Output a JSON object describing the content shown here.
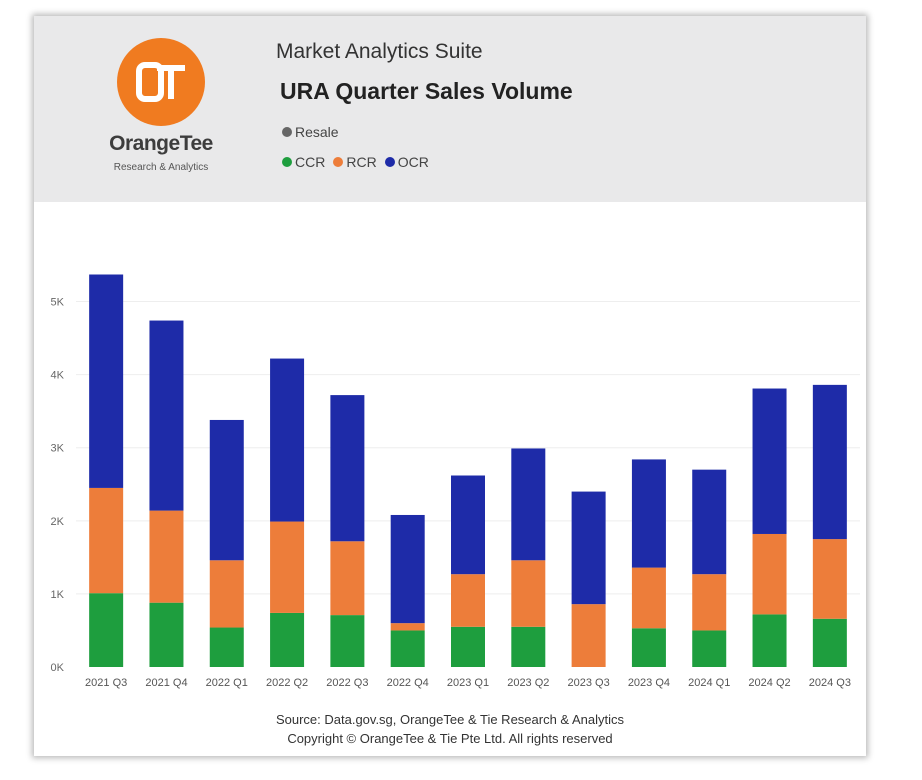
{
  "header": {
    "suite": "Market Analytics Suite",
    "brand": "OrangeTee",
    "brand_sub": "Research & Analytics",
    "logo_letters": "OT",
    "logo_color": "#F07B20"
  },
  "legend": {
    "row1": [
      {
        "label": "Resale",
        "color": "#666666"
      }
    ],
    "row2": [
      {
        "label": "CCR",
        "color": "#1E9E3E"
      },
      {
        "label": "RCR",
        "color": "#ED7D3A"
      },
      {
        "label": "OCR",
        "color": "#1E2BA8"
      }
    ]
  },
  "footer": {
    "source": "Source: Data.gov.sg, OrangeTee & Tie Research & Analytics",
    "copyright": "Copyright © OrangeTee & Tie Pte Ltd. All rights reserved"
  },
  "chart_data": {
    "type": "bar",
    "stacked": true,
    "title": "URA Quarter Sales Volume",
    "xlabel": "",
    "ylabel": "",
    "ylim": [
      0,
      5500
    ],
    "yticks": [
      0,
      1000,
      2000,
      3000,
      4000,
      5000
    ],
    "ytick_labels": [
      "0K",
      "1K",
      "2K",
      "3K",
      "4K",
      "5K"
    ],
    "grid": true,
    "legend_position": "top-left",
    "categories": [
      "2021 Q3",
      "2021 Q4",
      "2022 Q1",
      "2022 Q2",
      "2022 Q3",
      "2022 Q4",
      "2023 Q1",
      "2023 Q2",
      "2023 Q3",
      "2023 Q4",
      "2024 Q1",
      "2024 Q2",
      "2024 Q3"
    ],
    "series": [
      {
        "name": "CCR",
        "color": "#1E9E3E",
        "values": [
          1010,
          880,
          540,
          740,
          710,
          500,
          550,
          550,
          0,
          530,
          500,
          720,
          660
        ]
      },
      {
        "name": "RCR",
        "color": "#ED7D3A",
        "values": [
          1440,
          1260,
          920,
          1250,
          1010,
          100,
          720,
          910,
          860,
          830,
          770,
          1100,
          1090
        ]
      },
      {
        "name": "OCR",
        "color": "#1E2BA8",
        "values": [
          2920,
          2600,
          1920,
          2230,
          2000,
          1480,
          1350,
          1530,
          1540,
          1480,
          1430,
          1990,
          2110
        ]
      }
    ]
  }
}
